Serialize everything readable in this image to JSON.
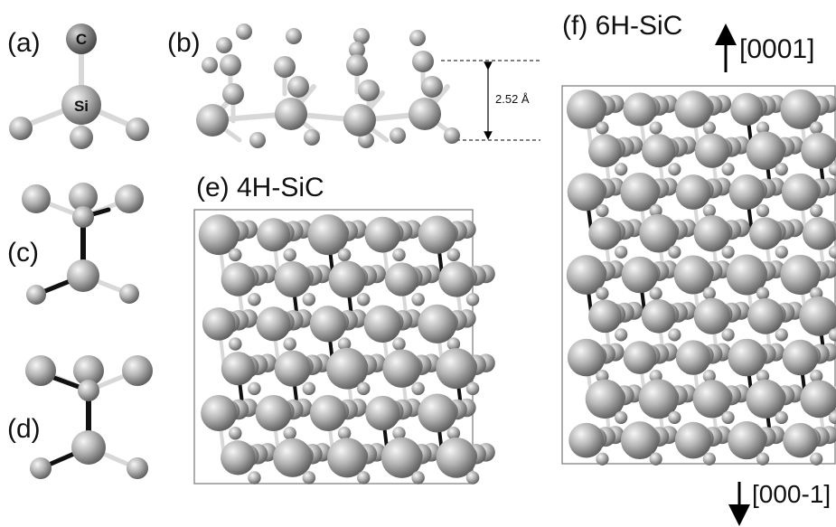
{
  "panels": {
    "a": {
      "label": "(a)",
      "atom_top": "C",
      "atom_center": "Si"
    },
    "b": {
      "label": "(b)",
      "layer_spacing": "2.52 Å"
    },
    "c": {
      "label": "(c)"
    },
    "d": {
      "label": "(d)"
    },
    "e": {
      "label": "(e) 4H-SiC"
    },
    "f": {
      "label": "(f) 6H-SiC",
      "dir_up": "[0001]",
      "dir_down": "[000-1]"
    }
  },
  "colors": {
    "atom": "#a8a8a8",
    "atom_dark": "#5e5e5e",
    "bond_light": "#d8d8d8",
    "bond_dark": "#111111"
  }
}
